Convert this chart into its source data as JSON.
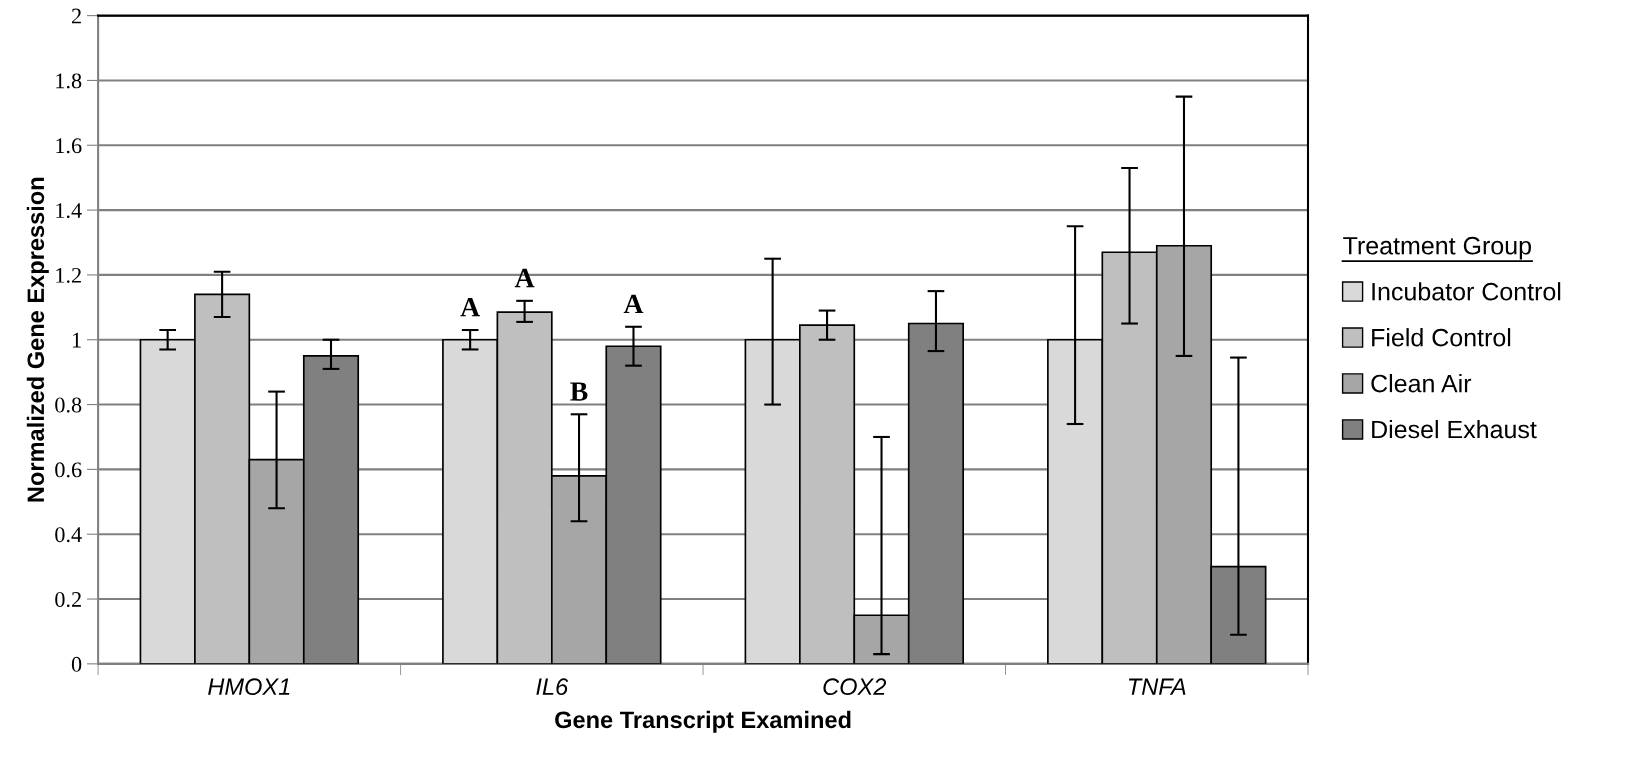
{
  "chart_data": {
    "type": "bar",
    "xlabel": "Gene Transcript Examined",
    "ylabel": "Normalized Gene Expression",
    "legend_title": "Treatment Group",
    "categories": [
      "HMOX1",
      "IL6",
      "COX2",
      "TNFA"
    ],
    "series": [
      {
        "name": "Incubator Control",
        "color": "#d9d9d9",
        "values": [
          1.0,
          1.0,
          1.0,
          1.0
        ],
        "errors": [
          [
            0.97,
            1.03
          ],
          [
            0.97,
            1.03
          ],
          [
            0.8,
            1.25
          ],
          [
            0.74,
            1.35
          ]
        ],
        "value_labels": [
          null,
          "A",
          null,
          null
        ]
      },
      {
        "name": "Field Control",
        "color": "#bfbfbf",
        "values": [
          1.14,
          1.085,
          1.045,
          1.27
        ],
        "errors": [
          [
            1.07,
            1.21
          ],
          [
            1.055,
            1.12
          ],
          [
            1.0,
            1.09
          ],
          [
            1.05,
            1.53
          ]
        ],
        "value_labels": [
          null,
          "A",
          null,
          null
        ]
      },
      {
        "name": "Clean Air",
        "color": "#a6a6a6",
        "values": [
          0.63,
          0.58,
          0.15,
          1.29
        ],
        "errors": [
          [
            0.48,
            0.84
          ],
          [
            0.44,
            0.77
          ],
          [
            0.03,
            0.7
          ],
          [
            0.95,
            1.75
          ]
        ],
        "value_labels": [
          null,
          "B",
          null,
          null
        ]
      },
      {
        "name": "Diesel Exhaust",
        "color": "#808080",
        "values": [
          0.95,
          0.98,
          1.05,
          0.3
        ],
        "errors": [
          [
            0.91,
            1.0
          ],
          [
            0.92,
            1.04
          ],
          [
            0.965,
            1.15
          ],
          [
            0.09,
            0.945
          ]
        ],
        "value_labels": [
          null,
          "A",
          null,
          null
        ]
      }
    ],
    "ylim": [
      0,
      2
    ],
    "yticks": [
      0,
      0.2,
      0.4,
      0.6,
      0.8,
      1,
      1.2,
      1.4,
      1.6,
      1.8,
      2
    ],
    "grid": "y",
    "legend": "right"
  }
}
